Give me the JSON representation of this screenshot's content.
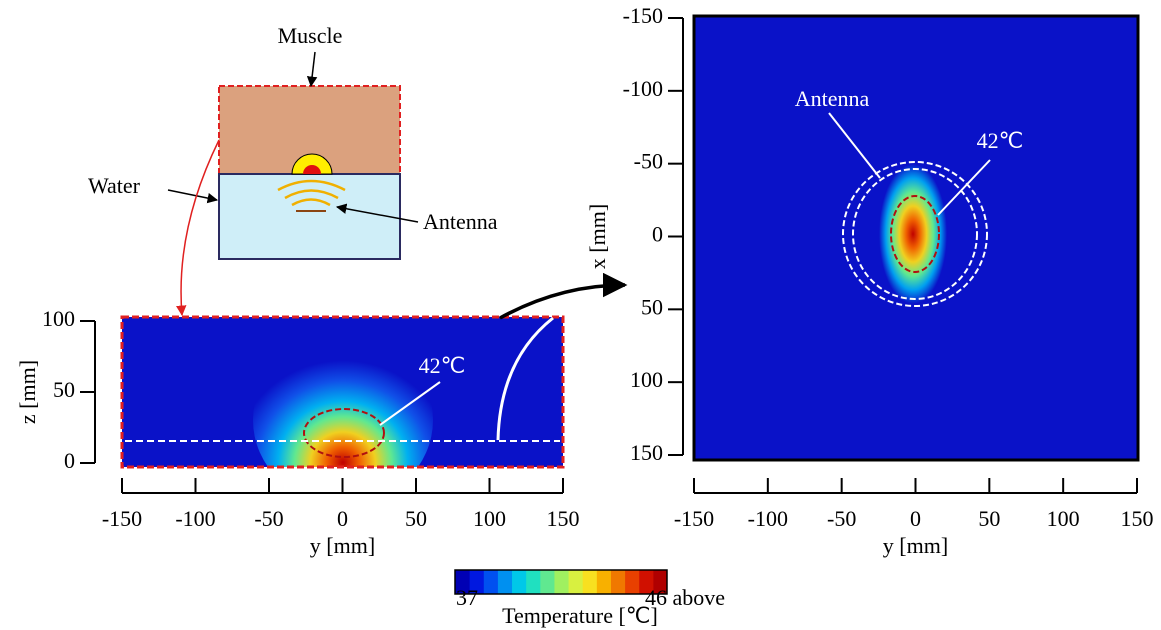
{
  "diagram": {
    "muscle": "Muscle",
    "water": "Water",
    "antenna": "Antenna"
  },
  "chart_data": [
    {
      "type": "heatmap",
      "xlabel": "y [mm]",
      "ylabel": "z [mm]",
      "xlim": [
        -150,
        150
      ],
      "xticks": [
        -150,
        -100,
        -50,
        0,
        50,
        100,
        150
      ],
      "ylim": [
        0,
        100
      ],
      "yticks": [
        0,
        50,
        100
      ],
      "annotations": [
        "42℃"
      ]
    },
    {
      "type": "heatmap",
      "xlabel": "y [mm]",
      "ylabel": "x [mm]",
      "xlim": [
        -150,
        150
      ],
      "xticks": [
        -150,
        -100,
        -50,
        0,
        50,
        100,
        150
      ],
      "ylim": [
        150,
        -150
      ],
      "yticks": [
        -150,
        -100,
        -50,
        0,
        50,
        100,
        150
      ],
      "annotations": [
        "Antenna",
        "42℃"
      ]
    }
  ],
  "colorbar": {
    "min_label": "37",
    "max_label": "46 above",
    "title": "Temperature [℃]",
    "colors": [
      "#0000b4",
      "#0018e0",
      "#0050f0",
      "#0090f0",
      "#00c8e8",
      "#20e0c0",
      "#60e890",
      "#a0f060",
      "#d8f040",
      "#f8e020",
      "#f8b000",
      "#f07800",
      "#e84000",
      "#d01000",
      "#b00000"
    ]
  }
}
